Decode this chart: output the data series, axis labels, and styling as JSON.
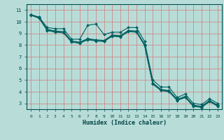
{
  "xlabel": "Humidex (Indice chaleur)",
  "bg_color": "#b8ddd8",
  "line_color": "#006060",
  "grid_color_major": "#d08080",
  "xlim": [
    -0.5,
    23.5
  ],
  "ylim": [
    2.5,
    11.5
  ],
  "xticks": [
    0,
    1,
    2,
    3,
    4,
    5,
    6,
    7,
    8,
    9,
    10,
    11,
    12,
    13,
    14,
    15,
    16,
    17,
    18,
    19,
    20,
    21,
    22,
    23
  ],
  "yticks": [
    3,
    4,
    5,
    6,
    7,
    8,
    9,
    10,
    11
  ],
  "y_wiggly": [
    10.6,
    10.4,
    9.5,
    9.4,
    9.4,
    8.5,
    8.5,
    9.7,
    9.8,
    8.9,
    9.1,
    9.1,
    9.5,
    9.5,
    8.3,
    5.0,
    4.4,
    4.4,
    3.5,
    3.8,
    3.0,
    2.9,
    3.4,
    3.0
  ],
  "y_line2": [
    10.6,
    10.35,
    9.35,
    9.2,
    9.15,
    8.35,
    8.25,
    8.55,
    8.45,
    8.4,
    8.85,
    8.8,
    9.25,
    9.2,
    8.05,
    4.75,
    4.2,
    4.1,
    3.35,
    3.6,
    2.85,
    2.75,
    3.25,
    2.85
  ],
  "y_line3": [
    10.6,
    10.35,
    9.3,
    9.15,
    9.1,
    8.3,
    8.2,
    8.5,
    8.4,
    8.35,
    8.8,
    8.75,
    9.2,
    9.15,
    8.0,
    4.7,
    4.15,
    4.05,
    3.3,
    3.55,
    2.8,
    2.7,
    3.2,
    2.8
  ],
  "y_line4": [
    10.55,
    10.3,
    9.25,
    9.1,
    9.05,
    8.25,
    8.15,
    8.45,
    8.35,
    8.3,
    8.75,
    8.7,
    9.15,
    9.1,
    7.95,
    4.65,
    4.1,
    4.0,
    3.25,
    3.5,
    2.75,
    2.65,
    3.15,
    2.75
  ]
}
